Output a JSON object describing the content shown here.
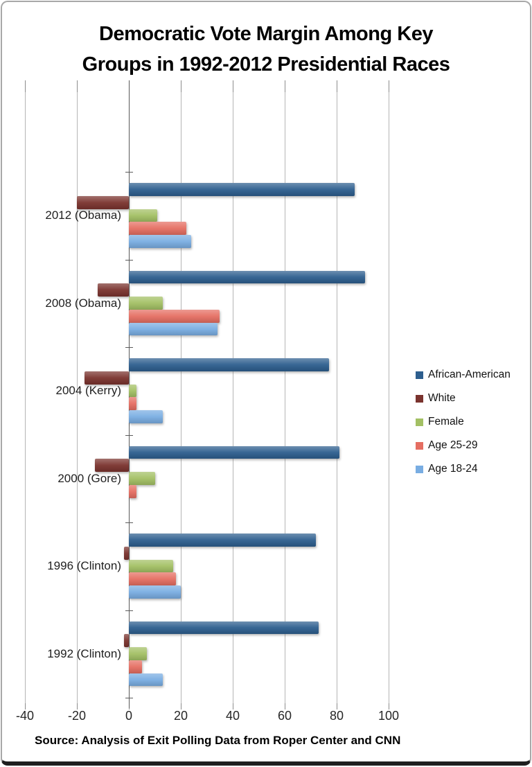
{
  "title": {
    "line1": "Democratic Vote Margin Among Key",
    "line2": "Groups in 1992-2012 Presidential Races"
  },
  "source": "Source: Analysis of Exit Polling Data from Roper Center and CNN",
  "chart_data": {
    "type": "bar",
    "orientation": "horizontal",
    "title": "Democratic Vote Margin Among Key Groups in 1992-2012 Presidential Races",
    "categories": [
      "2012 (Obama)",
      "2008 (Obama)",
      "2004 (Kerry)",
      "2000 (Gore)",
      "1996 (Clinton)",
      "1992 (Clinton)"
    ],
    "series": [
      {
        "name": "African-American",
        "color": "#2d5e8e",
        "values": [
          87,
          91,
          77,
          81,
          72,
          73
        ]
      },
      {
        "name": "White",
        "color": "#7a332e",
        "values": [
          -20,
          -12,
          -17,
          -13,
          -2,
          -2
        ]
      },
      {
        "name": "Female",
        "color": "#a3c064",
        "values": [
          11,
          13,
          3,
          10,
          17,
          7
        ]
      },
      {
        "name": "Age 25-29",
        "color": "#e56e62",
        "values": [
          22,
          35,
          3,
          3,
          18,
          5
        ]
      },
      {
        "name": "Age 18-24",
        "color": "#79ade2",
        "values": [
          24,
          34,
          13,
          0,
          20,
          13
        ]
      }
    ],
    "x_axis": {
      "ticks": [
        -40,
        -20,
        0,
        20,
        40,
        60,
        80,
        100
      ],
      "min": -40,
      "max": 100
    },
    "grid": true,
    "legend_position": "right"
  }
}
